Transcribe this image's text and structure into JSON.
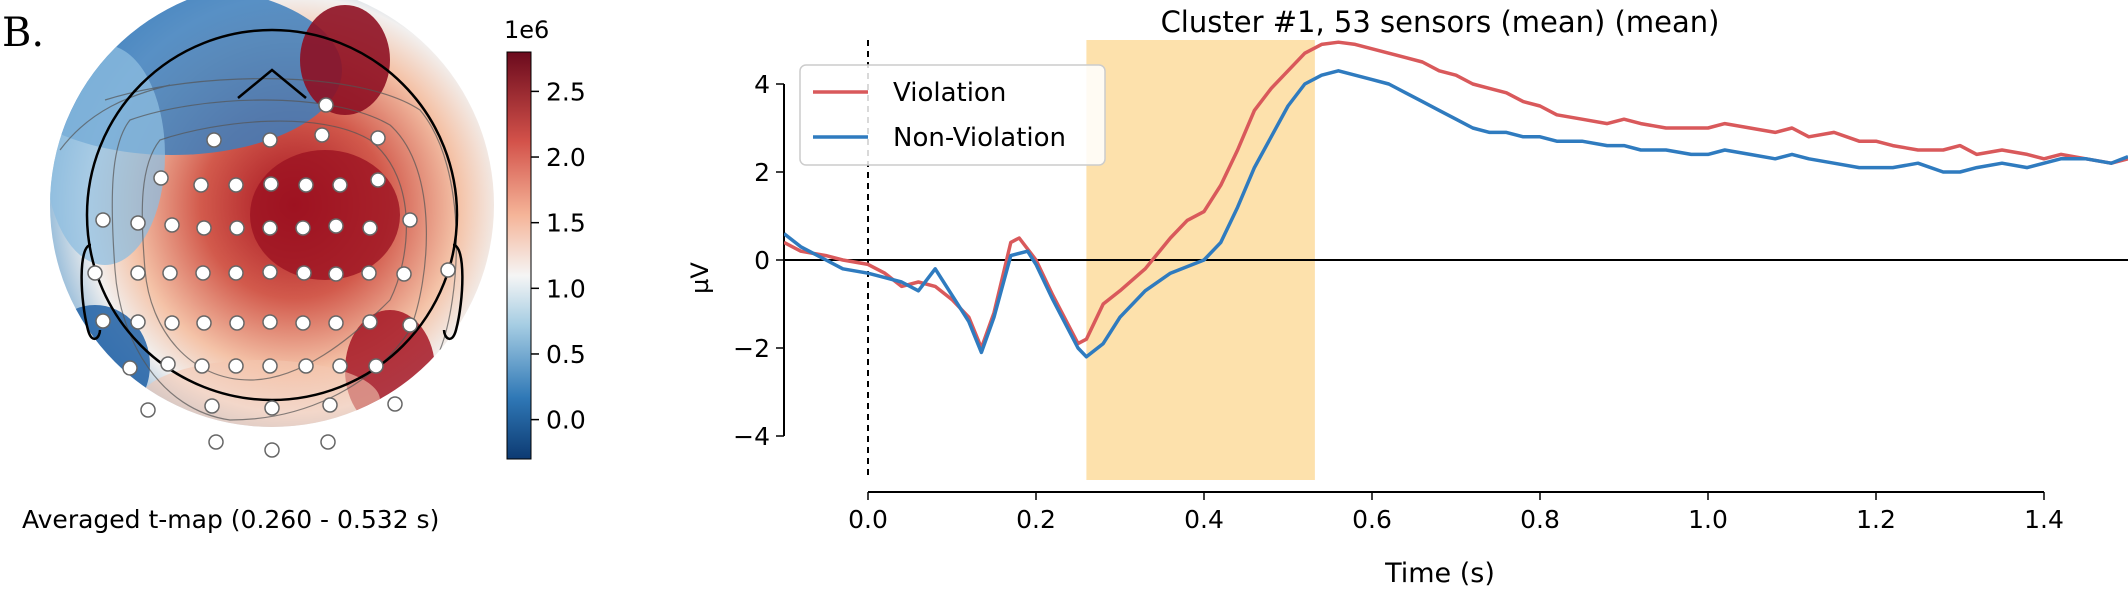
{
  "panel_label": "B.",
  "topomap": {
    "colorbar": {
      "scale_label": "1e6",
      "ticks": [
        "2.5",
        "2.0",
        "1.5",
        "1.0",
        "0.5",
        "0.0"
      ],
      "range": [
        -0.3,
        2.8
      ]
    },
    "caption": "Averaged t-map (0.260 - 0.532 s)"
  },
  "chart_data": {
    "type": "line",
    "title": "Cluster #1, 53 sensors (mean) (mean)",
    "xlabel": "Time (s)",
    "ylabel": "µV",
    "xlim": [
      -0.1,
      1.5
    ],
    "ylim": [
      -5,
      5
    ],
    "x_ticks": [
      "0.0",
      "0.2",
      "0.4",
      "0.6",
      "0.8",
      "1.0",
      "1.2",
      "1.4"
    ],
    "y_ticks": [
      "−4",
      "−2",
      "0",
      "2",
      "4"
    ],
    "highlight_span": [
      0.26,
      0.532
    ],
    "grid": false,
    "legend_position": "upper-left",
    "series": [
      {
        "name": "Violation",
        "color": "#d9595b",
        "x": [
          -0.1,
          -0.08,
          -0.05,
          -0.03,
          0.0,
          0.02,
          0.04,
          0.06,
          0.08,
          0.1,
          0.12,
          0.135,
          0.15,
          0.17,
          0.18,
          0.2,
          0.22,
          0.25,
          0.26,
          0.28,
          0.3,
          0.33,
          0.36,
          0.38,
          0.4,
          0.42,
          0.44,
          0.46,
          0.48,
          0.5,
          0.52,
          0.54,
          0.56,
          0.58,
          0.6,
          0.62,
          0.64,
          0.66,
          0.68,
          0.7,
          0.72,
          0.74,
          0.76,
          0.78,
          0.8,
          0.82,
          0.85,
          0.88,
          0.9,
          0.92,
          0.95,
          0.98,
          1.0,
          1.02,
          1.05,
          1.08,
          1.1,
          1.12,
          1.15,
          1.18,
          1.2,
          1.22,
          1.25,
          1.28,
          1.3,
          1.32,
          1.35,
          1.38,
          1.4,
          1.42,
          1.45,
          1.48,
          1.5
        ],
        "values": [
          0.4,
          0.2,
          0.1,
          0.0,
          -0.1,
          -0.3,
          -0.6,
          -0.5,
          -0.6,
          -0.9,
          -1.3,
          -2.0,
          -1.2,
          0.4,
          0.5,
          0.0,
          -0.8,
          -1.9,
          -1.8,
          -1.0,
          -0.7,
          -0.2,
          0.5,
          0.9,
          1.1,
          1.7,
          2.5,
          3.4,
          3.9,
          4.3,
          4.7,
          4.9,
          4.95,
          4.9,
          4.8,
          4.7,
          4.6,
          4.5,
          4.3,
          4.2,
          4.0,
          3.9,
          3.8,
          3.6,
          3.5,
          3.3,
          3.2,
          3.1,
          3.2,
          3.1,
          3.0,
          3.0,
          3.0,
          3.1,
          3.0,
          2.9,
          3.0,
          2.8,
          2.9,
          2.7,
          2.7,
          2.6,
          2.5,
          2.5,
          2.6,
          2.4,
          2.5,
          2.4,
          2.3,
          2.4,
          2.3,
          2.2,
          2.3
        ]
      },
      {
        "name": "Non-Violation",
        "color": "#2f7bbf",
        "x": [
          -0.1,
          -0.08,
          -0.05,
          -0.03,
          0.0,
          0.02,
          0.04,
          0.06,
          0.08,
          0.1,
          0.12,
          0.135,
          0.15,
          0.17,
          0.19,
          0.2,
          0.22,
          0.25,
          0.26,
          0.28,
          0.3,
          0.33,
          0.36,
          0.38,
          0.4,
          0.42,
          0.44,
          0.46,
          0.48,
          0.5,
          0.52,
          0.54,
          0.56,
          0.58,
          0.6,
          0.62,
          0.64,
          0.66,
          0.68,
          0.7,
          0.72,
          0.74,
          0.76,
          0.78,
          0.8,
          0.82,
          0.85,
          0.88,
          0.9,
          0.92,
          0.95,
          0.98,
          1.0,
          1.02,
          1.05,
          1.08,
          1.1,
          1.12,
          1.15,
          1.18,
          1.2,
          1.22,
          1.25,
          1.28,
          1.3,
          1.32,
          1.35,
          1.38,
          1.4,
          1.42,
          1.45,
          1.48,
          1.5
        ],
        "values": [
          0.6,
          0.3,
          0.0,
          -0.2,
          -0.3,
          -0.4,
          -0.5,
          -0.7,
          -0.2,
          -0.8,
          -1.4,
          -2.1,
          -1.3,
          0.1,
          0.2,
          -0.1,
          -0.9,
          -2.0,
          -2.2,
          -1.9,
          -1.3,
          -0.7,
          -0.3,
          -0.15,
          0.0,
          0.4,
          1.2,
          2.1,
          2.8,
          3.5,
          4.0,
          4.2,
          4.3,
          4.2,
          4.1,
          4.0,
          3.8,
          3.6,
          3.4,
          3.2,
          3.0,
          2.9,
          2.9,
          2.8,
          2.8,
          2.7,
          2.7,
          2.6,
          2.6,
          2.5,
          2.5,
          2.4,
          2.4,
          2.5,
          2.4,
          2.3,
          2.4,
          2.3,
          2.2,
          2.1,
          2.1,
          2.1,
          2.2,
          2.0,
          2.0,
          2.1,
          2.2,
          2.1,
          2.2,
          2.3,
          2.3,
          2.2,
          2.35
        ]
      }
    ]
  }
}
